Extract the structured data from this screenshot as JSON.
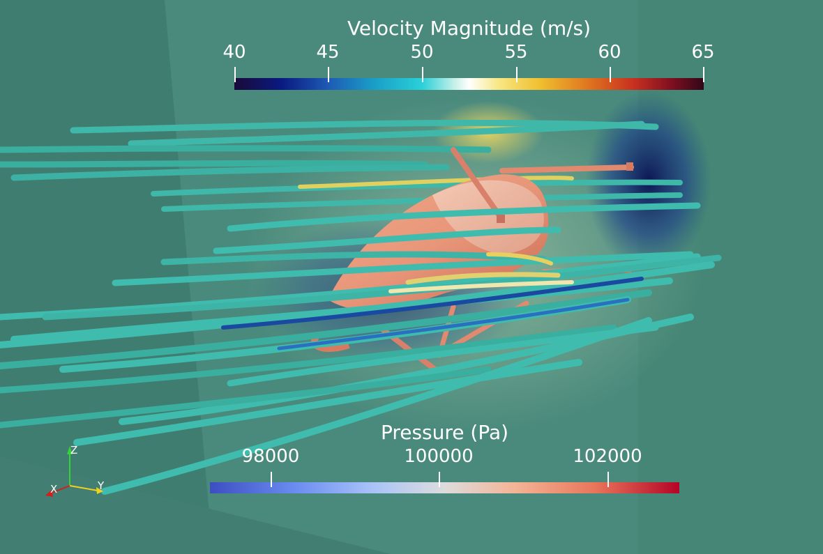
{
  "velocity_bar": {
    "title": "Velocity Magnitude (m/s)",
    "ticks": [
      "40",
      "45",
      "50",
      "55",
      "60",
      "65"
    ]
  },
  "pressure_bar": {
    "title": "Pressure (Pa)",
    "ticks": [
      "98000",
      "100000",
      "102000"
    ]
  },
  "axes": {
    "z_label": "Z",
    "x_label": "X",
    "y_label": "Y",
    "z_color": "#3ad23a",
    "x_color": "#d21e1e",
    "y_color": "#f0d21e"
  },
  "colors": {
    "background": "#4a8a7c",
    "streamline": "#3fbcae",
    "body": "#e8967a"
  }
}
